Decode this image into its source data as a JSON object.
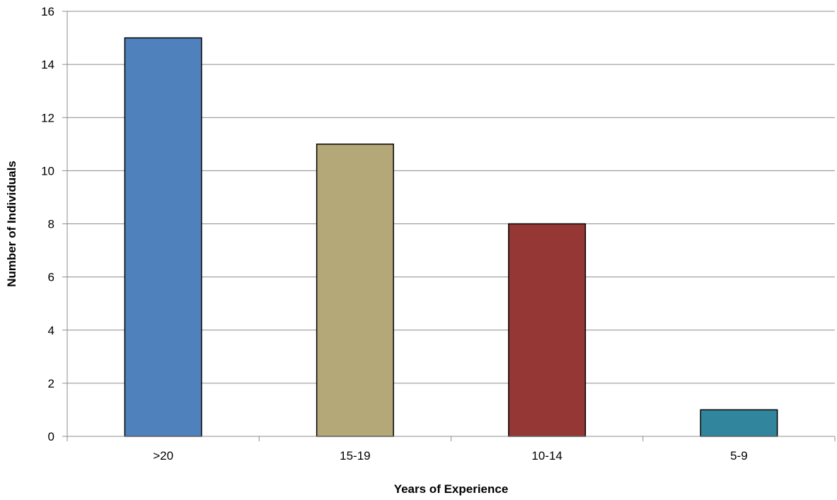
{
  "chart_data": {
    "type": "bar",
    "title": "",
    "xlabel": "Years of Experience",
    "ylabel": "Number of Individuals",
    "categories": [
      ">20",
      "15-19",
      "10-14",
      "5-9"
    ],
    "series": [
      {
        "values": [
          15,
          11,
          8,
          1
        ]
      }
    ],
    "bar_colors": [
      "#4f81bd",
      "#b5a878",
      "#953735",
      "#31859c"
    ],
    "ylim": [
      0,
      16
    ],
    "yticks": [
      "0",
      "2",
      "4",
      "6",
      "8",
      "10",
      "12",
      "14",
      "16"
    ],
    "grid": true,
    "legend": "none"
  }
}
